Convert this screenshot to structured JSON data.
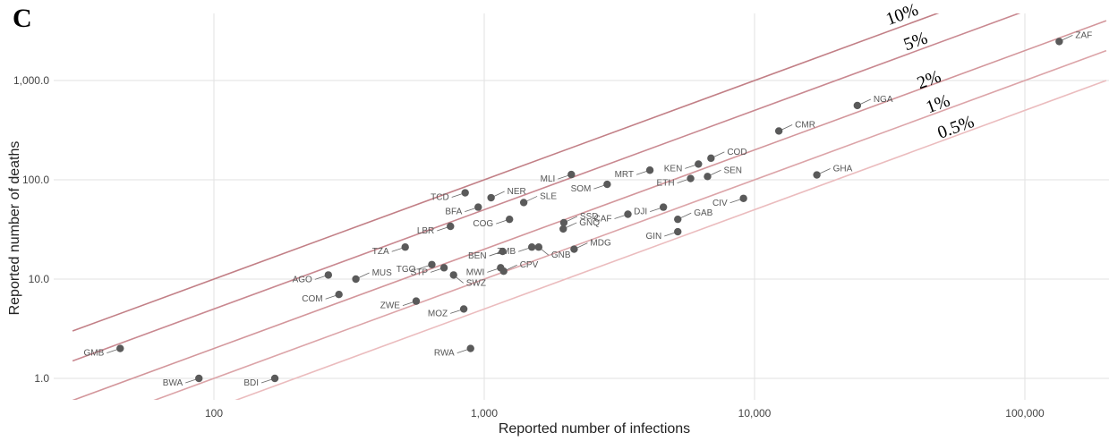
{
  "panel_label": "C",
  "chart_data": {
    "type": "scatter",
    "xlabel": "Reported number of infections",
    "ylabel": "Reported number of deaths",
    "x_scale": "log",
    "y_scale": "log",
    "xlim": [
      30,
      200000
    ],
    "ylim": [
      0.6,
      3800
    ],
    "grid": true,
    "x_ticks": [
      100,
      1000,
      10000,
      100000
    ],
    "x_tick_labels": [
      "100",
      "1,000",
      "10,000",
      "100,000"
    ],
    "y_ticks": [
      1,
      10,
      100,
      1000
    ],
    "y_tick_labels": [
      "1.0",
      "10.0",
      "100.0",
      "1,000.0"
    ],
    "reference_lines": [
      {
        "label": "10%",
        "rate": 0.1,
        "color": "#c27f86"
      },
      {
        "label": "5%",
        "rate": 0.05,
        "color": "#c98890"
      },
      {
        "label": "2%",
        "rate": 0.02,
        "color": "#d3969b"
      },
      {
        "label": "1%",
        "rate": 0.01,
        "color": "#dca4a8"
      },
      {
        "label": "0.5%",
        "rate": 0.005,
        "color": "#ebbcbe"
      }
    ],
    "points": [
      {
        "label": "ZAF",
        "x": 134000,
        "y": 2470
      },
      {
        "label": "NGA",
        "x": 24000,
        "y": 560
      },
      {
        "label": "CMR",
        "x": 12300,
        "y": 310
      },
      {
        "label": "GHA",
        "x": 17000,
        "y": 112
      },
      {
        "label": "COD",
        "x": 6900,
        "y": 165
      },
      {
        "label": "KEN",
        "x": 6200,
        "y": 144
      },
      {
        "label": "SEN",
        "x": 6700,
        "y": 108
      },
      {
        "label": "ETH",
        "x": 5800,
        "y": 103
      },
      {
        "label": "MRT",
        "x": 4100,
        "y": 125
      },
      {
        "label": "MLI",
        "x": 2100,
        "y": 113
      },
      {
        "label": "SOM",
        "x": 2850,
        "y": 90
      },
      {
        "label": "DJI",
        "x": 4600,
        "y": 53
      },
      {
        "label": "CAF",
        "x": 3400,
        "y": 45
      },
      {
        "label": "GAB",
        "x": 5200,
        "y": 40
      },
      {
        "label": "CIV",
        "x": 9100,
        "y": 65
      },
      {
        "label": "GIN",
        "x": 5200,
        "y": 30
      },
      {
        "label": "TCD",
        "x": 850,
        "y": 74
      },
      {
        "label": "NER",
        "x": 1060,
        "y": 66
      },
      {
        "label": "BFA",
        "x": 950,
        "y": 53
      },
      {
        "label": "SLE",
        "x": 1400,
        "y": 59
      },
      {
        "label": "COG",
        "x": 1240,
        "y": 40
      },
      {
        "label": "SSD",
        "x": 1970,
        "y": 37
      },
      {
        "label": "GNQ",
        "x": 1960,
        "y": 32
      },
      {
        "label": "LBR",
        "x": 750,
        "y": 34
      },
      {
        "label": "ZMB",
        "x": 1500,
        "y": 21
      },
      {
        "label": "GNB",
        "x": 1590,
        "y": 21
      },
      {
        "label": "MDG",
        "x": 2150,
        "y": 20
      },
      {
        "label": "BEN",
        "x": 1170,
        "y": 19
      },
      {
        "label": "TZA",
        "x": 510,
        "y": 21
      },
      {
        "label": "TGO",
        "x": 640,
        "y": 14
      },
      {
        "label": "STP",
        "x": 710,
        "y": 13
      },
      {
        "label": "SWZ",
        "x": 770,
        "y": 11
      },
      {
        "label": "MWI",
        "x": 1150,
        "y": 13
      },
      {
        "label": "CPV",
        "x": 1180,
        "y": 12
      },
      {
        "label": "AGO",
        "x": 265,
        "y": 11
      },
      {
        "label": "MUS",
        "x": 335,
        "y": 10
      },
      {
        "label": "COM",
        "x": 290,
        "y": 7
      },
      {
        "label": "ZWE",
        "x": 560,
        "y": 6
      },
      {
        "label": "MOZ",
        "x": 840,
        "y": 5
      },
      {
        "label": "RWA",
        "x": 890,
        "y": 2
      },
      {
        "label": "GMB",
        "x": 45,
        "y": 2
      },
      {
        "label": "BWA",
        "x": 88,
        "y": 1
      },
      {
        "label": "BDI",
        "x": 168,
        "y": 1
      }
    ]
  },
  "colors": {
    "point": "#5a5a5a",
    "leader": "#666666",
    "grid": "#e2e2e2"
  }
}
